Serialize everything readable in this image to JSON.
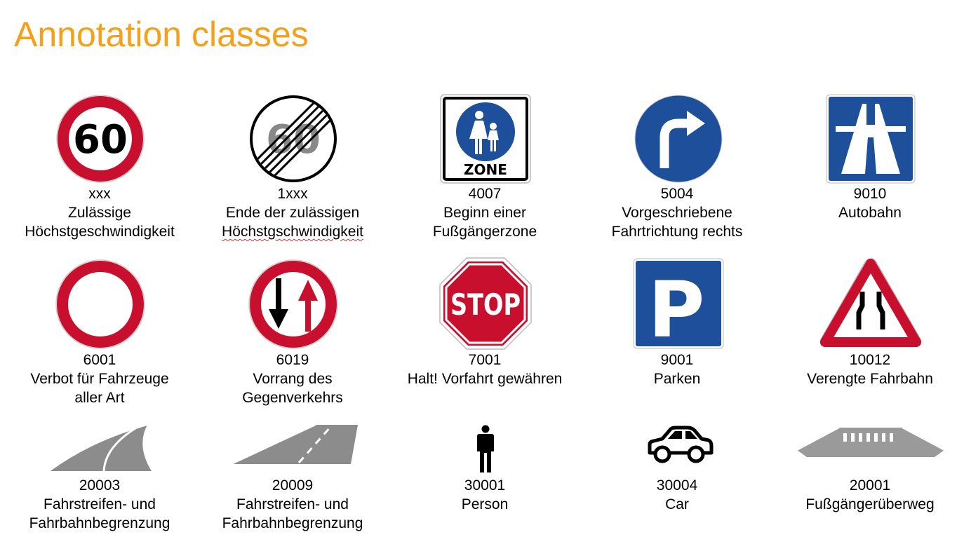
{
  "title": "Annotation classes",
  "colors": {
    "title": "#f5a01a",
    "sign_red": "#c8102e",
    "sign_blue": "#1d4f9a",
    "gray": "#8c8c8c"
  },
  "rows": [
    [
      {
        "code": "xxx",
        "lines": [
          "Zulässige",
          "Höchstgeschwindigkeit"
        ],
        "icon": "speed-limit-60-icon",
        "sign_text": "60"
      },
      {
        "code": "1xxx",
        "lines": [
          "Ende der zulässigen",
          "Höchstgschwindigkeit"
        ],
        "icon": "end-speed-limit-60-icon",
        "sign_text": "60"
      },
      {
        "code": "4007",
        "lines": [
          "Beginn einer",
          "Fußgängerzone"
        ],
        "icon": "pedestrian-zone-icon",
        "sign_text": "ZONE"
      },
      {
        "code": "5004",
        "lines": [
          "Vorgeschriebene",
          "Fahrtrichtung rechts"
        ],
        "icon": "turn-right-icon"
      },
      {
        "code": "9010",
        "lines": [
          "Autobahn"
        ],
        "icon": "autobahn-icon"
      }
    ],
    [
      {
        "code": "6001",
        "lines": [
          "Verbot für Fahrzeuge",
          "aller Art"
        ],
        "icon": "no-vehicles-icon"
      },
      {
        "code": "6019",
        "lines": [
          "Vorrang des",
          "Gegenverkehrs"
        ],
        "icon": "priority-oncoming-icon"
      },
      {
        "code": "7001",
        "lines": [
          "Halt! Vorfahrt gewähren"
        ],
        "icon": "stop-sign-icon",
        "sign_text": "STOP"
      },
      {
        "code": "9001",
        "lines": [
          "Parken"
        ],
        "icon": "parking-icon",
        "sign_text": "P"
      },
      {
        "code": "10012",
        "lines": [
          "Verengte Fahrbahn"
        ],
        "icon": "road-narrows-icon"
      }
    ],
    [
      {
        "code": "20003",
        "lines": [
          "Fahrstreifen- und",
          "Fahrbahnbegrenzung"
        ],
        "icon": "curved-lane-marking-icon"
      },
      {
        "code": "20009",
        "lines": [
          "Fahrstreifen- und",
          "Fahrbahnbegrenzung"
        ],
        "icon": "straight-lane-marking-icon"
      },
      {
        "code": "30001",
        "lines": [
          "Person"
        ],
        "icon": "person-icon"
      },
      {
        "code": "30004",
        "lines": [
          "Car"
        ],
        "icon": "car-icon"
      },
      {
        "code": "20001",
        "lines": [
          "Fußgängerüberweg"
        ],
        "icon": "crosswalk-icon"
      }
    ]
  ]
}
